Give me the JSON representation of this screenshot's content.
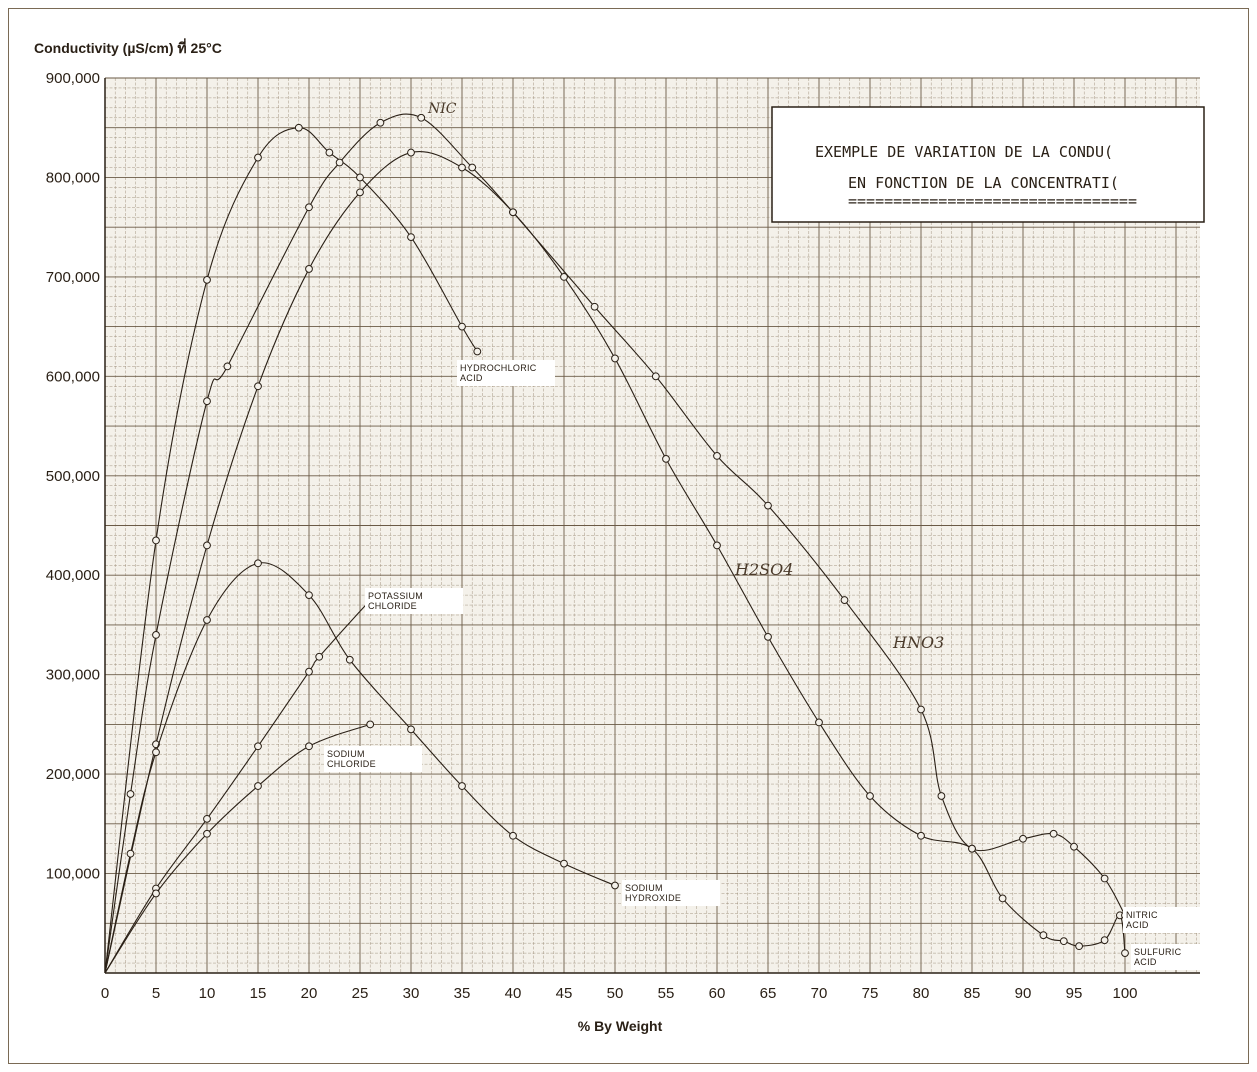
{
  "chart_data": {
    "type": "line",
    "ylabel": "Conductivity (µS/cm) ที่ 25°C",
    "xlabel": "% By Weight",
    "xlim": [
      0,
      107
    ],
    "ylim": [
      0,
      900000
    ],
    "x_ticks": [
      "0",
      "5",
      "10",
      "15",
      "20",
      "25",
      "30",
      "35",
      "40",
      "45",
      "50",
      "55",
      "60",
      "65",
      "70",
      "75",
      "80",
      "85",
      "90",
      "95",
      "100"
    ],
    "y_ticks": [
      "100,000",
      "200,000",
      "300,000",
      "400,000",
      "500,000",
      "600,000",
      "700,000",
      "800,000",
      "900,000"
    ],
    "grid": true,
    "box": {
      "line1": "EXEMPLE DE VARIATION DE LA CONDU(",
      "line2": "EN FONCTION DE LA CONCENTRATI(",
      "line3": "================================"
    },
    "series": [
      {
        "name": "HYDROCHLORIC ACID",
        "label_lines": [
          "HYDROCHLORIC",
          "ACID"
        ],
        "x": [
          0,
          5,
          10,
          15,
          19,
          22,
          25,
          30,
          35,
          36.5
        ],
        "y": [
          0,
          435000,
          697000,
          820000,
          850000,
          825000,
          800000,
          740000,
          650000,
          625000
        ]
      },
      {
        "name": "SULFURIC ACID",
        "label_lines": [
          "SULFURIC",
          "ACID"
        ],
        "x": [
          0,
          5,
          10,
          15,
          20,
          25,
          30,
          35,
          40,
          45,
          50,
          55,
          60,
          65,
          70,
          75,
          80,
          85,
          88,
          92,
          94,
          95.5,
          98,
          99.5,
          100
        ],
        "y": [
          0,
          230000,
          430000,
          590000,
          708000,
          785000,
          825000,
          810000,
          765000,
          700000,
          618000,
          517000,
          430000,
          338000,
          252000,
          178000,
          138000,
          125000,
          75000,
          38000,
          32000,
          27000,
          33000,
          58000,
          20000
        ]
      },
      {
        "name": "NITRIC ACID",
        "label_lines": [
          "NITRIC",
          "ACID"
        ],
        "x": [
          0,
          2.5,
          5,
          10,
          12,
          20,
          23,
          27,
          31,
          36,
          40,
          48,
          54,
          60,
          65,
          72.5,
          80,
          82,
          85,
          90,
          93,
          95,
          98,
          100
        ],
        "y": [
          0,
          180000,
          340000,
          575000,
          610000,
          770000,
          815000,
          855000,
          860000,
          810000,
          765000,
          670000,
          600000,
          520000,
          470000,
          375000,
          265000,
          178000,
          125000,
          135000,
          140000,
          127000,
          95000,
          58000
        ]
      },
      {
        "name": "POTASSIUM CHLORIDE",
        "label_lines": [
          "POTASSIUM",
          "CHLORIDE"
        ],
        "x": [
          0,
          5,
          10,
          15,
          20,
          21,
          26
        ],
        "y": [
          0,
          85000,
          155000,
          228000,
          303000,
          318000,
          375000
        ]
      },
      {
        "name": "SODIUM HYDROXIDE",
        "label_lines": [
          "SODIUM",
          "HYDROXIDE"
        ],
        "x": [
          0,
          2.5,
          5,
          10,
          15,
          20,
          24,
          30,
          35,
          40,
          45,
          50
        ],
        "y": [
          0,
          120000,
          222000,
          355000,
          412000,
          380000,
          315000,
          245000,
          188000,
          138000,
          110000,
          88000
        ]
      },
      {
        "name": "SODIUM CHLORIDE",
        "label_lines": [
          "SODIUM",
          "CHLORIDE"
        ],
        "x": [
          0,
          5,
          10,
          15,
          20,
          26
        ],
        "y": [
          0,
          80000,
          140000,
          188000,
          228000,
          250000
        ]
      }
    ],
    "annotations": [
      "NIC",
      "HNO3",
      "H2SO4"
    ]
  }
}
